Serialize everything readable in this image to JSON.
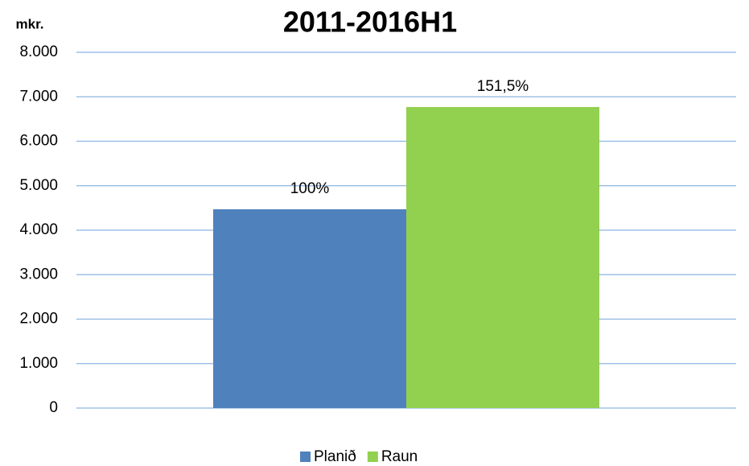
{
  "chart_data": {
    "type": "bar",
    "title": "2011-2016H1",
    "ylabel": "mkr.",
    "categories": [
      null
    ],
    "series": [
      {
        "name": "Planið",
        "color": "#4f81bd",
        "values": [
          4470
        ]
      },
      {
        "name": "Raun",
        "color": "#92d050",
        "values": [
          6770
        ]
      }
    ],
    "annotations": [
      "100%",
      "151,5%"
    ],
    "ylim": [
      0,
      8000
    ],
    "yticks": [
      0,
      {
        "value": 1000,
        "label": "1.000"
      },
      {
        "value": 2000,
        "label": "2.000"
      },
      {
        "value": 3000,
        "label": "3.000"
      },
      {
        "value": 4000,
        "label": "4.000"
      },
      {
        "value": 5000,
        "label": "5.000"
      },
      {
        "value": 6000,
        "label": "6.000"
      },
      {
        "value": 7000,
        "label": "7.000"
      },
      {
        "value": 8000,
        "label": "8.000"
      }
    ],
    "grid": true,
    "legend": "bottom"
  }
}
